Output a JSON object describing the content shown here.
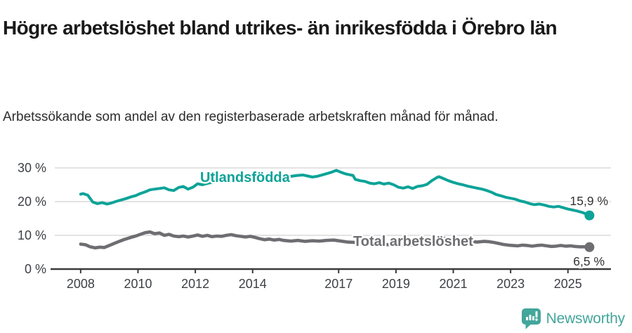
{
  "header": {
    "title": "Högre arbetslöshet bland utrikes- än inrikesfödda i Örebro län",
    "subtitle": "Arbetssökande som andel av den registerbaserade arbetskraften månad för månad."
  },
  "chart_data": {
    "type": "line",
    "title": "Högre arbetslöshet bland utrikes- än inrikesfödda i Örebro län",
    "xlabel": "",
    "ylabel": "",
    "grid": "horizontal",
    "legend_position": "inline-on-line",
    "xlim": [
      2006.95,
      2026.5
    ],
    "ylim": [
      0,
      30
    ],
    "x_ticks": [
      2008,
      2010,
      2012,
      2014,
      2017,
      2019,
      2021,
      2023,
      2025
    ],
    "x_tick_labels": [
      "2008",
      "2010",
      "2012",
      "2014",
      "2017",
      "2019",
      "2021",
      "2023",
      "2025"
    ],
    "y_ticks": [
      0,
      10,
      20,
      30
    ],
    "y_tick_labels": [
      "0 %",
      "10 %",
      "20 %",
      "30 %"
    ],
    "series": [
      {
        "name": "Utlandsfödda",
        "color": "#0da398",
        "end_label": "15,9 %",
        "end_value": 15.9,
        "points": [
          [
            2008.0,
            22.2
          ],
          [
            2008.08,
            22.4
          ],
          [
            2008.25,
            21.9
          ],
          [
            2008.42,
            19.9
          ],
          [
            2008.58,
            19.4
          ],
          [
            2008.75,
            19.7
          ],
          [
            2008.92,
            19.3
          ],
          [
            2009.08,
            19.6
          ],
          [
            2009.25,
            20.1
          ],
          [
            2009.42,
            20.5
          ],
          [
            2009.58,
            20.9
          ],
          [
            2009.75,
            21.4
          ],
          [
            2009.92,
            21.8
          ],
          [
            2010.08,
            22.4
          ],
          [
            2010.25,
            22.9
          ],
          [
            2010.42,
            23.5
          ],
          [
            2010.58,
            23.7
          ],
          [
            2010.75,
            23.9
          ],
          [
            2010.92,
            24.1
          ],
          [
            2011.08,
            23.5
          ],
          [
            2011.25,
            23.3
          ],
          [
            2011.42,
            24.2
          ],
          [
            2011.58,
            24.5
          ],
          [
            2011.75,
            23.7
          ],
          [
            2011.92,
            24.3
          ],
          [
            2012.08,
            25.3
          ],
          [
            2012.25,
            25.0
          ],
          [
            2012.42,
            25.4
          ],
          [
            2012.58,
            25.7
          ],
          [
            2012.75,
            25.9
          ],
          [
            2012.92,
            26.1
          ],
          [
            2013.08,
            25.9
          ],
          [
            2013.25,
            26.2
          ],
          [
            2013.42,
            26.5
          ],
          [
            2013.58,
            26.7
          ],
          [
            2013.75,
            26.4
          ],
          [
            2013.92,
            26.7
          ],
          [
            2014.08,
            26.9
          ],
          [
            2014.25,
            27.1
          ],
          [
            2014.42,
            26.8
          ],
          [
            2014.58,
            27.0
          ],
          [
            2014.75,
            27.2
          ],
          [
            2014.92,
            27.0
          ],
          [
            2015.08,
            27.2
          ],
          [
            2015.25,
            27.4
          ],
          [
            2015.42,
            27.6
          ],
          [
            2015.58,
            27.8
          ],
          [
            2015.75,
            27.9
          ],
          [
            2015.92,
            27.6
          ],
          [
            2016.08,
            27.3
          ],
          [
            2016.25,
            27.5
          ],
          [
            2016.42,
            27.9
          ],
          [
            2016.58,
            28.3
          ],
          [
            2016.75,
            28.7
          ],
          [
            2016.92,
            29.3
          ],
          [
            2017.08,
            28.7
          ],
          [
            2017.25,
            28.2
          ],
          [
            2017.42,
            27.9
          ],
          [
            2017.5,
            27.8
          ],
          [
            2017.58,
            26.6
          ],
          [
            2017.75,
            26.2
          ],
          [
            2017.92,
            26.0
          ],
          [
            2018.08,
            25.5
          ],
          [
            2018.25,
            25.3
          ],
          [
            2018.42,
            25.6
          ],
          [
            2018.58,
            25.2
          ],
          [
            2018.75,
            25.5
          ],
          [
            2018.92,
            25.0
          ],
          [
            2019.08,
            24.3
          ],
          [
            2019.25,
            24.0
          ],
          [
            2019.42,
            24.4
          ],
          [
            2019.58,
            23.9
          ],
          [
            2019.75,
            24.5
          ],
          [
            2019.92,
            24.7
          ],
          [
            2020.08,
            25.1
          ],
          [
            2020.25,
            26.2
          ],
          [
            2020.42,
            27.1
          ],
          [
            2020.5,
            27.4
          ],
          [
            2020.67,
            26.8
          ],
          [
            2020.83,
            26.2
          ],
          [
            2021.0,
            25.7
          ],
          [
            2021.17,
            25.3
          ],
          [
            2021.33,
            25.0
          ],
          [
            2021.5,
            24.6
          ],
          [
            2021.67,
            24.3
          ],
          [
            2021.83,
            24.0
          ],
          [
            2022.0,
            23.7
          ],
          [
            2022.17,
            23.3
          ],
          [
            2022.33,
            22.8
          ],
          [
            2022.5,
            22.1
          ],
          [
            2022.67,
            21.7
          ],
          [
            2022.83,
            21.3
          ],
          [
            2023.0,
            21.0
          ],
          [
            2023.17,
            20.7
          ],
          [
            2023.33,
            20.2
          ],
          [
            2023.5,
            19.9
          ],
          [
            2023.67,
            19.4
          ],
          [
            2023.83,
            19.1
          ],
          [
            2024.0,
            19.3
          ],
          [
            2024.17,
            19.0
          ],
          [
            2024.33,
            18.6
          ],
          [
            2024.5,
            18.4
          ],
          [
            2024.67,
            18.6
          ],
          [
            2024.83,
            18.2
          ],
          [
            2025.0,
            17.8
          ],
          [
            2025.17,
            17.5
          ],
          [
            2025.33,
            17.2
          ],
          [
            2025.5,
            16.8
          ],
          [
            2025.62,
            16.4
          ],
          [
            2025.75,
            15.9
          ]
        ]
      },
      {
        "name": "Total arbetslöshet",
        "color": "#6e6e72",
        "end_label": "6,5 %",
        "end_value": 6.5,
        "points": [
          [
            2008.0,
            7.4
          ],
          [
            2008.17,
            7.2
          ],
          [
            2008.33,
            6.6
          ],
          [
            2008.5,
            6.3
          ],
          [
            2008.67,
            6.5
          ],
          [
            2008.83,
            6.4
          ],
          [
            2009.0,
            7.0
          ],
          [
            2009.25,
            7.9
          ],
          [
            2009.5,
            8.7
          ],
          [
            2009.75,
            9.4
          ],
          [
            2009.92,
            9.8
          ],
          [
            2010.08,
            10.3
          ],
          [
            2010.25,
            10.8
          ],
          [
            2010.42,
            11.0
          ],
          [
            2010.58,
            10.5
          ],
          [
            2010.75,
            10.7
          ],
          [
            2010.92,
            10.0
          ],
          [
            2011.08,
            10.3
          ],
          [
            2011.25,
            9.8
          ],
          [
            2011.42,
            9.6
          ],
          [
            2011.58,
            9.8
          ],
          [
            2011.75,
            9.5
          ],
          [
            2011.92,
            9.8
          ],
          [
            2012.08,
            10.1
          ],
          [
            2012.25,
            9.7
          ],
          [
            2012.42,
            10.0
          ],
          [
            2012.58,
            9.6
          ],
          [
            2012.75,
            9.8
          ],
          [
            2012.92,
            9.7
          ],
          [
            2013.08,
            10.0
          ],
          [
            2013.25,
            10.2
          ],
          [
            2013.42,
            9.9
          ],
          [
            2013.58,
            9.7
          ],
          [
            2013.75,
            9.5
          ],
          [
            2013.92,
            9.7
          ],
          [
            2014.08,
            9.4
          ],
          [
            2014.25,
            9.0
          ],
          [
            2014.42,
            8.7
          ],
          [
            2014.58,
            8.9
          ],
          [
            2014.75,
            8.6
          ],
          [
            2014.92,
            8.8
          ],
          [
            2015.08,
            8.5
          ],
          [
            2015.33,
            8.3
          ],
          [
            2015.58,
            8.5
          ],
          [
            2015.83,
            8.2
          ],
          [
            2016.08,
            8.4
          ],
          [
            2016.33,
            8.3
          ],
          [
            2016.58,
            8.5
          ],
          [
            2016.83,
            8.6
          ],
          [
            2017.08,
            8.3
          ],
          [
            2017.33,
            8.0
          ],
          [
            2017.58,
            7.9
          ],
          [
            2017.83,
            7.8
          ],
          [
            2018.08,
            7.6
          ],
          [
            2018.33,
            7.4
          ],
          [
            2018.58,
            7.3
          ],
          [
            2018.83,
            7.2
          ],
          [
            2019.08,
            7.1
          ],
          [
            2019.33,
            7.0
          ],
          [
            2019.58,
            7.2
          ],
          [
            2019.83,
            7.4
          ],
          [
            2020.08,
            7.9
          ],
          [
            2020.33,
            8.7
          ],
          [
            2020.58,
            9.2
          ],
          [
            2020.83,
            9.0
          ],
          [
            2021.08,
            8.7
          ],
          [
            2021.33,
            8.4
          ],
          [
            2021.58,
            8.2
          ],
          [
            2021.83,
            8.0
          ],
          [
            2022.08,
            8.2
          ],
          [
            2022.25,
            8.1
          ],
          [
            2022.42,
            7.9
          ],
          [
            2022.58,
            7.6
          ],
          [
            2022.75,
            7.3
          ],
          [
            2022.92,
            7.1
          ],
          [
            2023.08,
            7.0
          ],
          [
            2023.25,
            6.9
          ],
          [
            2023.42,
            7.1
          ],
          [
            2023.58,
            7.0
          ],
          [
            2023.75,
            6.8
          ],
          [
            2023.92,
            7.0
          ],
          [
            2024.08,
            7.1
          ],
          [
            2024.25,
            6.9
          ],
          [
            2024.42,
            6.7
          ],
          [
            2024.58,
            6.8
          ],
          [
            2024.75,
            7.0
          ],
          [
            2024.92,
            6.8
          ],
          [
            2025.08,
            6.9
          ],
          [
            2025.25,
            6.7
          ],
          [
            2025.42,
            6.6
          ],
          [
            2025.6,
            6.6
          ],
          [
            2025.75,
            6.5
          ]
        ]
      }
    ],
    "colors": {
      "grid": "#dadada",
      "axis": "#3a3a3a",
      "tick_text": "#3d4045",
      "end_label_text": "#333333"
    }
  },
  "footer": {
    "brand": "Newsworthy",
    "brand_color": "#43a69b"
  }
}
